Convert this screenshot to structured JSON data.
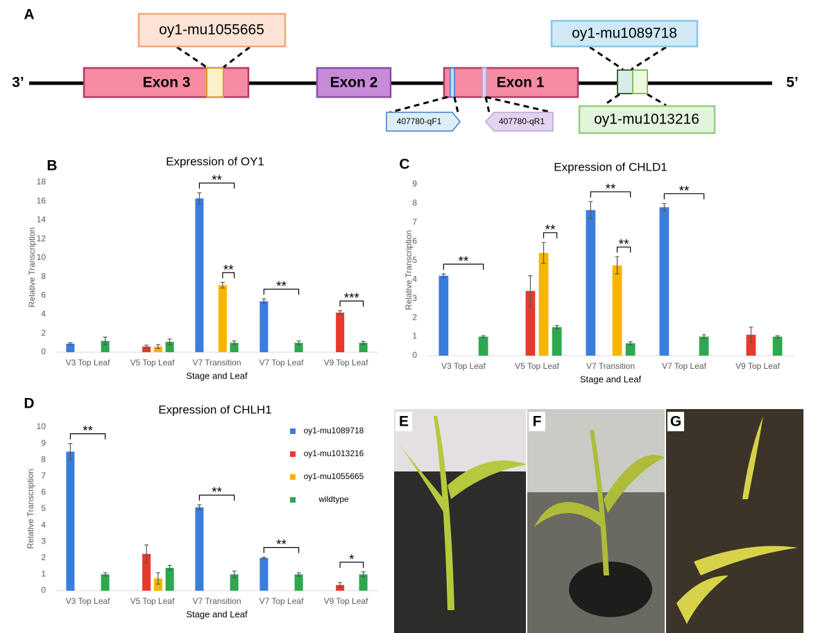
{
  "diagram": {
    "panel_label": "A",
    "ends": [
      "3’",
      "5’"
    ],
    "exons": [
      "Exon 3",
      "Exon 2",
      "Exon 1"
    ],
    "alleles": [
      "oy1-mu1055665",
      "oy1-mu1089718",
      "oy1-mu1013216"
    ],
    "primers": [
      "407780-qF1",
      "407780-qR1"
    ]
  },
  "chart_data": [
    {
      "type": "bar",
      "panel_label": "B",
      "title": "Expression of OY1",
      "x_label": "Stage and Leaf",
      "y_label": "Relative Transcription",
      "categories": [
        "V3 Top Leaf",
        "V5 Top Leaf",
        "V7 Transition",
        "V7 Top Leaf",
        "V9 Top Leaf"
      ],
      "series": [
        {
          "color": "#3b7ddd",
          "values": [
            0.9,
            null,
            16.3,
            5.4,
            null
          ],
          "errors": [
            0.1,
            null,
            0.6,
            0.25,
            null
          ]
        },
        {
          "color": "#e8392f",
          "values": [
            null,
            0.6,
            null,
            null,
            4.2
          ],
          "errors": [
            null,
            0.15,
            null,
            null,
            0.2
          ]
        },
        {
          "color": "#f7b500",
          "values": [
            null,
            0.6,
            7.1,
            null,
            null
          ],
          "errors": [
            null,
            0.2,
            0.3,
            null,
            null
          ]
        },
        {
          "color": "#2ea84f",
          "values": [
            1.2,
            1.1,
            1.0,
            1.0,
            1.0
          ],
          "errors": [
            0.4,
            0.3,
            0.2,
            0.2,
            0.15
          ]
        }
      ],
      "ylim": [
        0,
        18
      ],
      "yticks": [
        0,
        2,
        4,
        6,
        8,
        10,
        12,
        14,
        16,
        18
      ],
      "annotations": [
        "**",
        "**",
        "**",
        "***"
      ]
    },
    {
      "type": "bar",
      "panel_label": "C",
      "title": "Expression of CHLD1",
      "x_label": "Stage and Leaf",
      "y_label": "Relative Transcription",
      "categories": [
        "V3 Top Leaf",
        "V5 Top Leaf",
        "V7 Transition",
        "V7 Top Leaf",
        "V9 Top Leaf"
      ],
      "series": [
        {
          "color": "#3b7ddd",
          "values": [
            4.2,
            null,
            7.65,
            7.8,
            null
          ],
          "errors": [
            0.1,
            null,
            0.45,
            0.2,
            null
          ]
        },
        {
          "color": "#e8392f",
          "values": [
            null,
            3.4,
            null,
            null,
            1.1
          ],
          "errors": [
            null,
            0.8,
            null,
            null,
            0.4
          ]
        },
        {
          "color": "#f7b500",
          "values": [
            null,
            5.4,
            4.75,
            null,
            null
          ],
          "errors": [
            null,
            0.55,
            0.45,
            null,
            null
          ]
        },
        {
          "color": "#2ea84f",
          "values": [
            1.0,
            1.5,
            0.65,
            1.0,
            1.0
          ],
          "errors": [
            0.05,
            0.08,
            0.08,
            0.1,
            0.05
          ]
        }
      ],
      "ylim": [
        0,
        9
      ],
      "yticks": [
        0,
        1,
        2,
        3,
        4,
        5,
        6,
        7,
        8,
        9
      ],
      "annotations": [
        "**",
        "**",
        "**",
        "**",
        "**"
      ]
    },
    {
      "type": "bar",
      "panel_label": "D",
      "title": "Expression of CHLH1",
      "x_label": "Stage and Leaf",
      "y_label": "Relative Transcription",
      "categories": [
        "V3 Top Leaf",
        "V5 Top Leaf",
        "V7 Transition",
        "V7 Top Leaf",
        "V9 Top Leaf"
      ],
      "series": [
        {
          "name": "oy1-mu1089718",
          "color": "#3b7ddd",
          "values": [
            8.5,
            null,
            5.1,
            2.0,
            null
          ],
          "errors": [
            0.5,
            null,
            0.15,
            0.05,
            null
          ]
        },
        {
          "name": "oy1-mu1013216",
          "color": "#e8392f",
          "values": [
            null,
            2.25,
            null,
            null,
            0.35
          ],
          "errors": [
            null,
            0.55,
            null,
            null,
            0.15
          ]
        },
        {
          "name": "oy1-mu1055665",
          "color": "#f7b500",
          "values": [
            null,
            0.75,
            null,
            null,
            null
          ],
          "errors": [
            null,
            0.35,
            null,
            null,
            null
          ]
        },
        {
          "name": "wildtype",
          "color": "#2ea84f",
          "values": [
            1.0,
            1.4,
            1.0,
            1.0,
            1.0
          ],
          "errors": [
            0.1,
            0.15,
            0.2,
            0.1,
            0.15
          ]
        }
      ],
      "ylim": [
        0,
        10
      ],
      "yticks": [
        0,
        1,
        2,
        3,
        4,
        5,
        6,
        7,
        8,
        9,
        10
      ],
      "legend": "right",
      "annotations": [
        "**",
        "**",
        "**",
        "*"
      ]
    }
  ],
  "photos": {
    "labels": [
      "E",
      "F",
      "G"
    ]
  }
}
